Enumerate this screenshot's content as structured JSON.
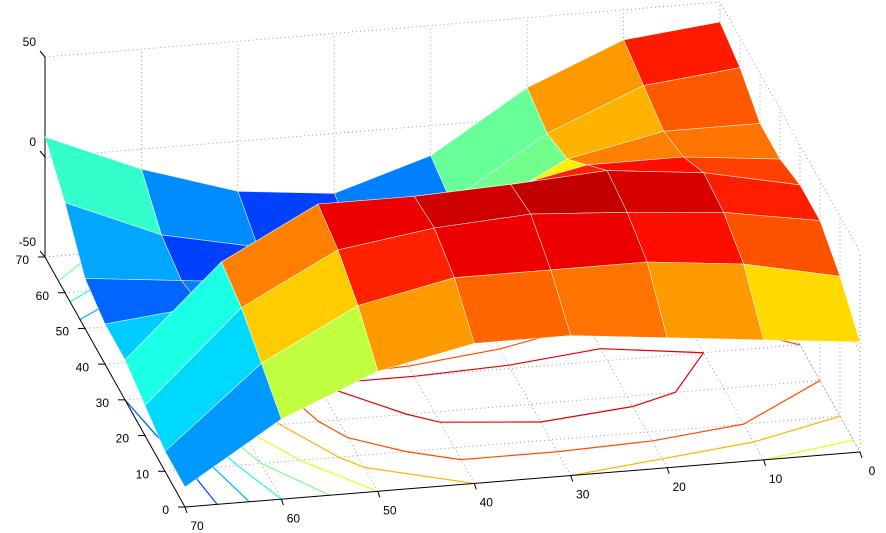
{
  "chart_data": {
    "type": "surface",
    "x": [
      0,
      10,
      20,
      30,
      40,
      50,
      60,
      70
    ],
    "y": [
      0,
      10,
      20,
      30,
      40,
      50,
      60,
      70
    ],
    "z": [
      [
        5,
        10,
        15,
        20,
        20,
        10,
        -10,
        -40
      ],
      [
        20,
        30,
        35,
        35,
        35,
        25,
        0,
        -40
      ],
      [
        30,
        38,
        42,
        45,
        42,
        35,
        10,
        -35
      ],
      [
        30,
        40,
        45,
        42,
        40,
        40,
        15,
        -30
      ],
      [
        25,
        30,
        30,
        20,
        5,
        -10,
        -25,
        -30
      ],
      [
        25,
        25,
        15,
        -10,
        -30,
        -35,
        -30,
        -25
      ],
      [
        35,
        30,
        10,
        -20,
        -35,
        -35,
        -25,
        -5
      ],
      [
        40,
        35,
        15,
        -15,
        -30,
        -25,
        -10,
        10
      ]
    ],
    "xlim": [
      0,
      70
    ],
    "ylim": [
      0,
      70
    ],
    "zlim": [
      -50,
      50
    ],
    "xticks": [
      0,
      10,
      20,
      30,
      40,
      50,
      60,
      70
    ],
    "yticks": [
      0,
      10,
      20,
      30,
      40,
      50,
      60,
      70
    ],
    "zticks": [
      -50,
      0,
      50
    ],
    "grid": true,
    "colormap": "jet",
    "contours": true
  }
}
